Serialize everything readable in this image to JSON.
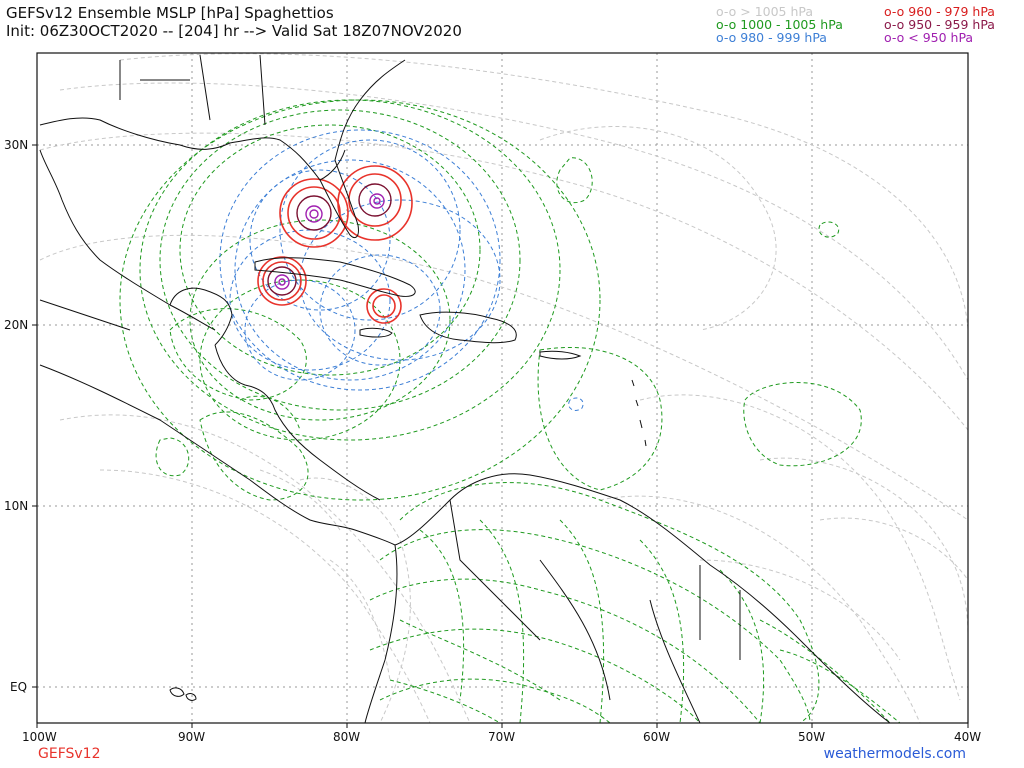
{
  "header": {
    "title": "GEFSv12 Ensemble MSLP [hPa] Spaghettios",
    "subtitle": "Init: 06Z30OCT2020 -- [204] hr --> Valid Sat 18Z07NOV2020"
  },
  "legend": {
    "items": [
      {
        "label": "o-o > 1005 hPa",
        "color": "#c8c8c8"
      },
      {
        "label": "o-o 1000 - 1005 hPa",
        "color": "#1f9a1f"
      },
      {
        "label": "o-o 980 - 999 hPa",
        "color": "#3d7fd6"
      },
      {
        "label": "o-o 960 - 979 hPa",
        "color": "#d81e1e"
      },
      {
        "label": "o-o 950 - 959 hPa",
        "color": "#8b1a4a"
      },
      {
        "label": "o-o < 950 hPa",
        "color": "#a020b0"
      }
    ]
  },
  "axes": {
    "lat_labels": [
      "30N",
      "20N",
      "10N",
      "EQ"
    ],
    "lon_labels": [
      "100W",
      "90W",
      "80W",
      "70W",
      "60W",
      "50W",
      "40W"
    ]
  },
  "footer": {
    "model": "GEFSv12",
    "site": "weathermodels.com"
  },
  "colors": {
    "land_border": "#111111",
    "gray_contour": "#c8c8c8",
    "green_contour": "#1f9a1f",
    "blue_contour": "#3d7fd6",
    "red_contour": "#e8332b",
    "dark_contour": "#7a1030",
    "purple_contour": "#a020b0",
    "grid": "#999999"
  }
}
